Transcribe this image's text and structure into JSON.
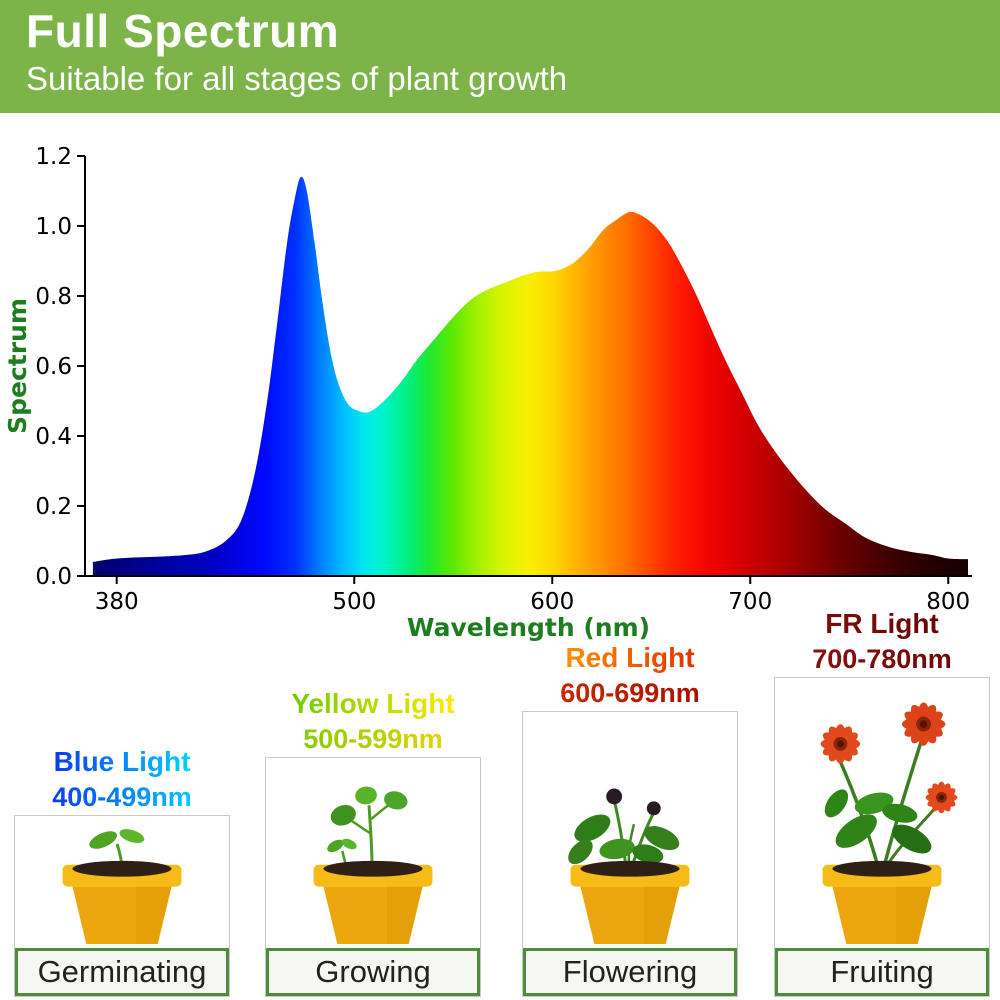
{
  "header": {
    "title": "Full Spectrum",
    "subtitle": "Suitable for all stages of plant growth"
  },
  "theme": {
    "header_bg": "#7cb44a",
    "axis_green": "#1e7d1e",
    "label_border": "#4e8c3c",
    "label_bg": "#f6f6f3",
    "label_text": "#222222",
    "card_border": "#c9c9c9"
  },
  "chart_data": {
    "type": "area",
    "title": "",
    "xlabel": "Wavelength (nm)",
    "ylabel": "Spectrum",
    "xlim": [
      364,
      812
    ],
    "ylim": [
      0,
      1.2
    ],
    "x_ticks": [
      380,
      500,
      600,
      700,
      800
    ],
    "y_ticks": [
      "0.0",
      "0.2",
      "0.4",
      "0.6",
      "0.8",
      "1.0",
      "1.2"
    ],
    "grid": false,
    "legend": false,
    "points": [
      [
        368,
        0.04
      ],
      [
        380,
        0.05
      ],
      [
        400,
        0.055
      ],
      [
        415,
        0.06
      ],
      [
        425,
        0.07
      ],
      [
        435,
        0.1
      ],
      [
        443,
        0.16
      ],
      [
        450,
        0.3
      ],
      [
        456,
        0.5
      ],
      [
        461,
        0.72
      ],
      [
        466,
        0.95
      ],
      [
        470,
        1.08
      ],
      [
        473,
        1.14
      ],
      [
        476,
        1.1
      ],
      [
        480,
        0.95
      ],
      [
        484,
        0.78
      ],
      [
        488,
        0.64
      ],
      [
        492,
        0.55
      ],
      [
        497,
        0.49
      ],
      [
        503,
        0.47
      ],
      [
        508,
        0.47
      ],
      [
        515,
        0.5
      ],
      [
        523,
        0.55
      ],
      [
        532,
        0.62
      ],
      [
        541,
        0.68
      ],
      [
        550,
        0.74
      ],
      [
        559,
        0.79
      ],
      [
        568,
        0.82
      ],
      [
        577,
        0.84
      ],
      [
        586,
        0.86
      ],
      [
        594,
        0.87
      ],
      [
        600,
        0.87
      ],
      [
        606,
        0.88
      ],
      [
        612,
        0.9
      ],
      [
        619,
        0.94
      ],
      [
        626,
        0.99
      ],
      [
        633,
        1.02
      ],
      [
        639,
        1.04
      ],
      [
        645,
        1.03
      ],
      [
        652,
        1.0
      ],
      [
        659,
        0.95
      ],
      [
        666,
        0.88
      ],
      [
        673,
        0.8
      ],
      [
        680,
        0.71
      ],
      [
        688,
        0.61
      ],
      [
        696,
        0.52
      ],
      [
        704,
        0.43
      ],
      [
        712,
        0.36
      ],
      [
        720,
        0.3
      ],
      [
        729,
        0.24
      ],
      [
        738,
        0.19
      ],
      [
        748,
        0.15
      ],
      [
        758,
        0.11
      ],
      [
        769,
        0.085
      ],
      [
        780,
        0.07
      ],
      [
        792,
        0.06
      ],
      [
        800,
        0.05
      ],
      [
        810,
        0.048
      ]
    ],
    "gradient_stops": [
      [
        368,
        "#00006a"
      ],
      [
        430,
        "#0000c8"
      ],
      [
        455,
        "#0008ff"
      ],
      [
        470,
        "#0030ff"
      ],
      [
        483,
        "#0080ff"
      ],
      [
        495,
        "#00c0ff"
      ],
      [
        505,
        "#00e8f0"
      ],
      [
        515,
        "#00f4c8"
      ],
      [
        527,
        "#00f080"
      ],
      [
        538,
        "#20e830"
      ],
      [
        550,
        "#60e800"
      ],
      [
        562,
        "#a0f000"
      ],
      [
        575,
        "#d8f400"
      ],
      [
        588,
        "#f8f000"
      ],
      [
        600,
        "#ffd800"
      ],
      [
        612,
        "#ffb400"
      ],
      [
        625,
        "#ff9000"
      ],
      [
        638,
        "#ff6c00"
      ],
      [
        650,
        "#ff4400"
      ],
      [
        662,
        "#ff2000"
      ],
      [
        675,
        "#f60800"
      ],
      [
        690,
        "#e00000"
      ],
      [
        705,
        "#c40000"
      ],
      [
        722,
        "#a00000"
      ],
      [
        740,
        "#780000"
      ],
      [
        760,
        "#500000"
      ],
      [
        780,
        "#300000"
      ],
      [
        810,
        "#150000"
      ]
    ]
  },
  "stages": [
    {
      "light_name": "Blue Light",
      "range": "400-499nm",
      "label": "Germinating",
      "name_colors": [
        "#0a3cf0",
        "#00d2ff"
      ],
      "range_colors": [
        "#0a3cf0",
        "#00c8ff"
      ],
      "plant_icon": "germinating-seedling-icon"
    },
    {
      "light_name": "Yellow Light",
      "range": "500-599nm",
      "label": "Growing",
      "name_colors": [
        "#6ecc00",
        "#ffe800"
      ],
      "range_colors": [
        "#86cc00",
        "#e3d500"
      ],
      "plant_icon": "growing-plant-icon"
    },
    {
      "light_name": "Red Light",
      "range": "600-699nm",
      "label": "Flowering",
      "name_colors": [
        "#ff9000",
        "#e03000"
      ],
      "range_colors": [
        "#cc2600",
        "#a81200"
      ],
      "plant_icon": "budding-plant-icon"
    },
    {
      "light_name": "FR Light",
      "range": "700-780nm",
      "label": "Fruiting",
      "name_colors": [
        "#7c0d0d",
        "#670707"
      ],
      "range_colors": [
        "#8a0f0f",
        "#6e0808"
      ],
      "plant_icon": "fruiting-flower-plant-icon"
    }
  ]
}
